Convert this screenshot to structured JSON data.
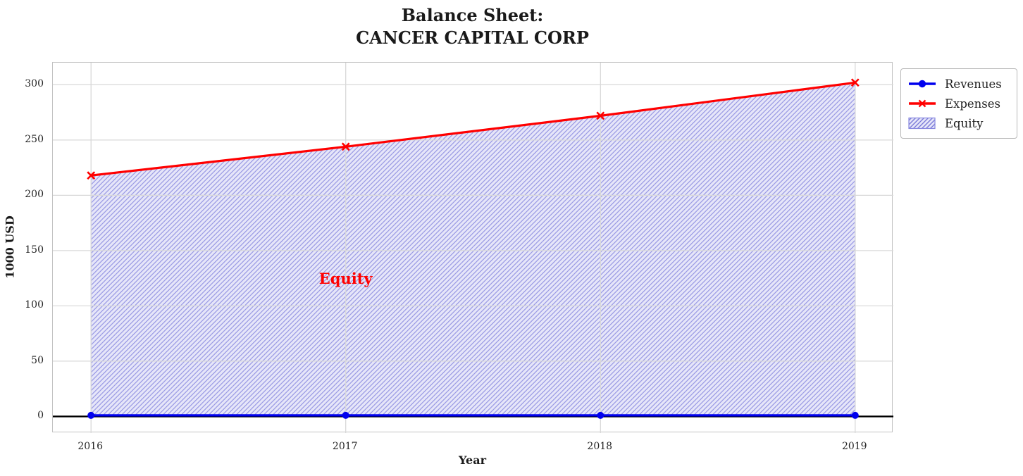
{
  "chart_data": {
    "type": "line",
    "title": "Balance Sheet:\nCANCER CAPITAL CORP",
    "xlabel": "Year",
    "ylabel": "1000 USD",
    "x": [
      2016,
      2017,
      2018,
      2019
    ],
    "series": [
      {
        "name": "Revenues",
        "values": [
          1,
          1,
          1,
          1
        ],
        "color": "#0000ee",
        "marker": "circle"
      },
      {
        "name": "Expenses",
        "values": [
          218,
          244,
          272,
          302
        ],
        "color": "#ff0000",
        "marker": "x"
      }
    ],
    "fill_between": {
      "label": "Equity",
      "upper": "Expenses",
      "lower": "Revenues",
      "facecolor": "#e6e6f9",
      "hatch": "//",
      "hatch_color": "#9b9be4",
      "edge_color": "#a0a0e8"
    },
    "annotation": {
      "text": "Equity",
      "x": 2017,
      "y": 125,
      "color": "#ff0000"
    },
    "xlim": [
      2015.85,
      2019.15
    ],
    "ylim": [
      -15,
      320
    ],
    "xticks": [
      "2016",
      "2017",
      "2018",
      "2019"
    ],
    "xtick_values": [
      2016,
      2017,
      2018,
      2019
    ],
    "yticks": [
      "0",
      "50",
      "100",
      "150",
      "200",
      "250",
      "300"
    ],
    "ytick_values": [
      0,
      50,
      100,
      150,
      200,
      250,
      300
    ],
    "grid": true,
    "zero_line": true,
    "colors": {
      "grid": "#d9d9d9",
      "spine": "#c2c2c2",
      "zero_line": "#000000",
      "text": "#262626",
      "legend_hatch": "#7a7ad8",
      "legend_patch_border": "#8888e0"
    },
    "legend": {
      "position": "upper-right-outside",
      "entries": [
        {
          "label": "Revenues",
          "swatch": "line-dot"
        },
        {
          "label": "Expenses",
          "swatch": "line-x"
        },
        {
          "label": "Equity",
          "swatch": "hatch-patch"
        }
      ]
    }
  }
}
